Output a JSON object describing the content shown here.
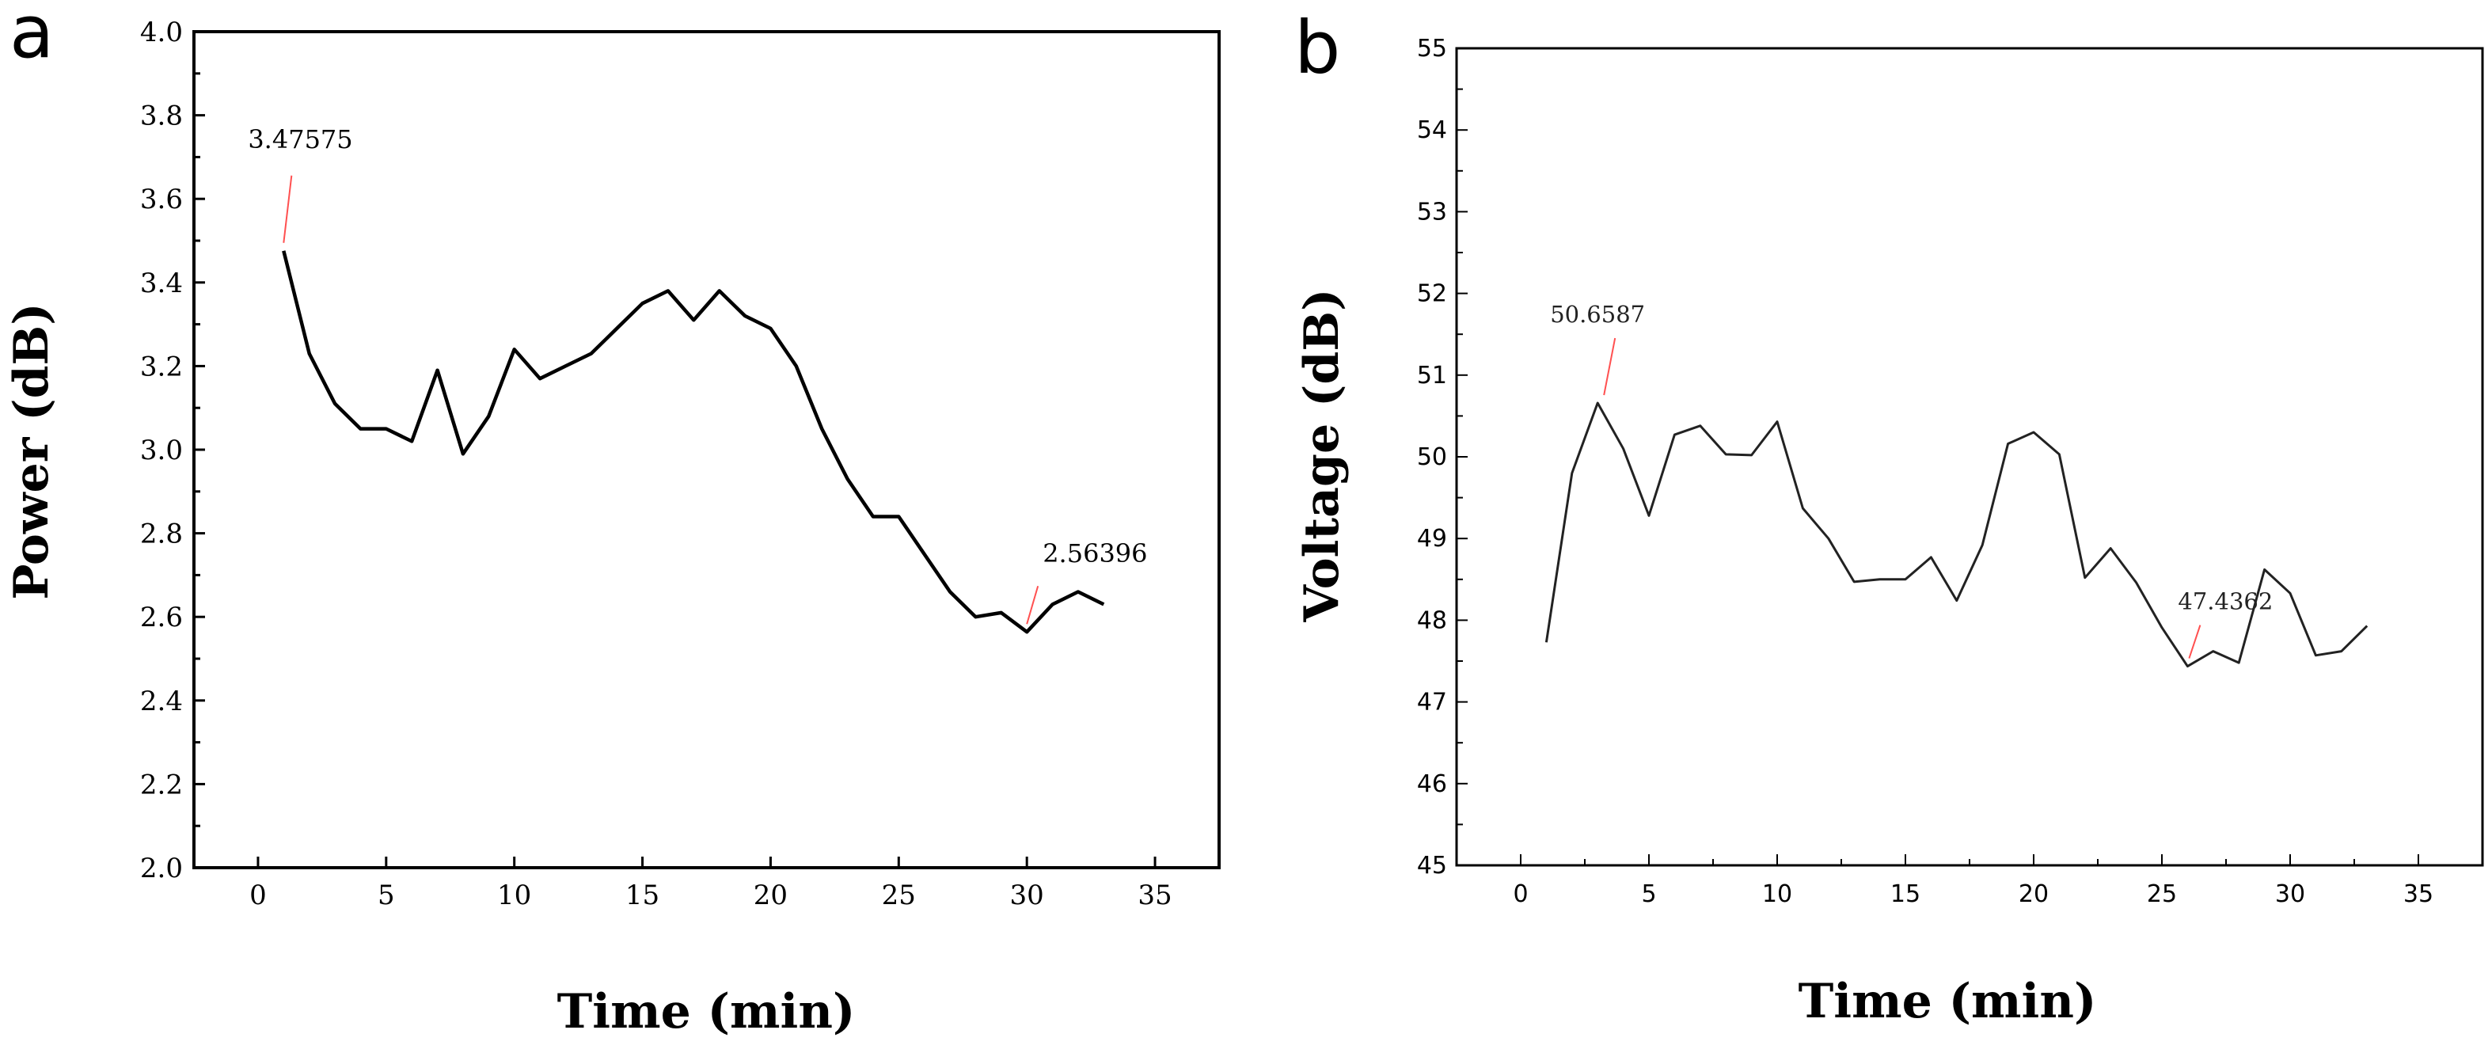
{
  "chart_data": [
    {
      "panel": "a",
      "type": "line",
      "title": "",
      "xlabel": "Time (min)",
      "ylabel": "Power (dB)",
      "xlim": [
        -2.5,
        37.5
      ],
      "ylim": [
        2.0,
        4.0
      ],
      "xticks": [
        "0",
        "5",
        "10",
        "15",
        "20",
        "25",
        "30",
        "35"
      ],
      "yticks": [
        "2.0",
        "2.2",
        "2.4",
        "2.6",
        "2.8",
        "3.0",
        "3.2",
        "3.4",
        "3.6",
        "3.8",
        "4.0"
      ],
      "grid": false,
      "line_color": "#000000",
      "series": [
        {
          "name": "Power",
          "x": [
            1,
            2,
            3,
            4,
            5,
            6,
            7,
            8,
            9,
            10,
            11,
            12,
            13,
            14,
            15,
            16,
            17,
            18,
            19,
            20,
            21,
            22,
            23,
            24,
            25,
            26,
            27,
            28,
            29,
            30,
            31,
            32,
            33
          ],
          "y": [
            3.47575,
            3.23,
            3.11,
            3.05,
            3.05,
            3.02,
            3.19,
            2.99,
            3.08,
            3.24,
            3.17,
            3.2,
            3.23,
            3.29,
            3.35,
            3.38,
            3.31,
            3.38,
            3.32,
            3.29,
            3.2,
            3.05,
            2.93,
            2.84,
            2.84,
            2.75,
            2.66,
            2.6,
            2.61,
            2.56396,
            2.63,
            2.66,
            2.63
          ]
        }
      ],
      "annotations": [
        {
          "text": "3.47575",
          "x": 1,
          "y": 3.47575,
          "leader_color": "#ff5050"
        },
        {
          "text": "2.56396",
          "x": 30,
          "y": 2.56396,
          "leader_color": "#ff5050"
        }
      ]
    },
    {
      "panel": "b",
      "type": "line",
      "title": "",
      "xlabel": "Time (min)",
      "ylabel": "Voltage (dB)",
      "xlim": [
        -2.5,
        37.5
      ],
      "ylim": [
        45,
        55
      ],
      "xticks": [
        "0",
        "5",
        "10",
        "15",
        "20",
        "25",
        "30",
        "35"
      ],
      "yticks": [
        "45",
        "46",
        "47",
        "48",
        "49",
        "50",
        "51",
        "52",
        "53",
        "54",
        "55"
      ],
      "grid": false,
      "line_color": "#222222",
      "series": [
        {
          "name": "Voltage",
          "x": [
            1,
            2,
            3,
            4,
            5,
            6,
            7,
            8,
            9,
            10,
            11,
            12,
            13,
            14,
            15,
            16,
            17,
            18,
            19,
            20,
            21,
            22,
            23,
            24,
            25,
            26,
            27,
            28,
            29,
            30,
            31,
            32,
            33
          ],
          "y": [
            47.73,
            49.8,
            50.6587,
            50.1,
            49.28,
            50.27,
            50.38,
            50.03,
            50.02,
            50.43,
            49.37,
            49.0,
            48.47,
            48.5,
            48.5,
            48.77,
            48.24,
            48.92,
            50.16,
            50.3,
            50.03,
            48.52,
            48.88,
            48.46,
            47.91,
            47.4362,
            47.62,
            47.48,
            48.62,
            48.33,
            47.57,
            47.62,
            47.93
          ]
        }
      ],
      "annotations": [
        {
          "text": "50.6587",
          "x": 3,
          "y": 50.6587,
          "leader_color": "#ff5050"
        },
        {
          "text": "47.4362",
          "x": 26,
          "y": 47.4362,
          "leader_color": "#ff5050"
        }
      ]
    }
  ],
  "panel_labels": [
    "a",
    "b"
  ]
}
